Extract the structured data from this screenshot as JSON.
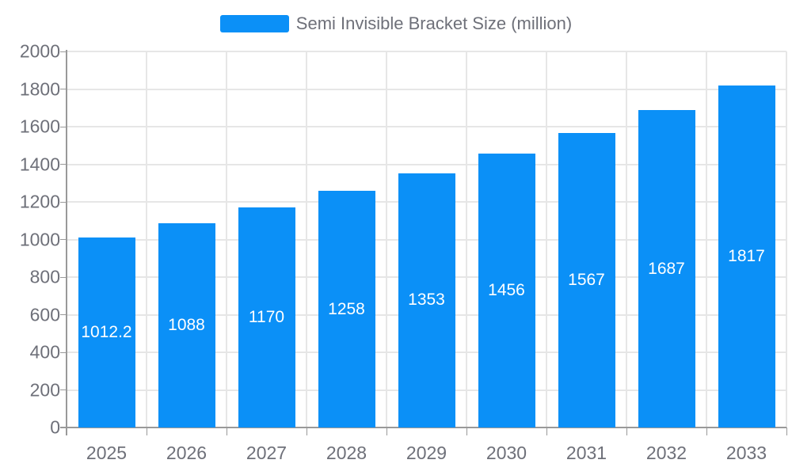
{
  "chart_data": {
    "type": "bar",
    "title": "",
    "legend": {
      "label": "Semi Invisible Bracket Size (million)",
      "position": "top-center"
    },
    "categories": [
      "2025",
      "2026",
      "2027",
      "2028",
      "2029",
      "2030",
      "2031",
      "2032",
      "2033"
    ],
    "series": [
      {
        "name": "Semi Invisible Bracket Size (million)",
        "values": [
          1012.2,
          1088,
          1170,
          1258,
          1353,
          1456,
          1567,
          1687,
          1817
        ]
      }
    ],
    "value_labels": [
      "1012.2",
      "1088",
      "1170",
      "1258",
      "1353",
      "1456",
      "1567",
      "1687",
      "1817"
    ],
    "value_label_position": "inside-center",
    "xlabel": "",
    "ylabel": "",
    "ylim": [
      0,
      2000
    ],
    "ytick_step": 200,
    "yticks": [
      "0",
      "200",
      "400",
      "600",
      "800",
      "1000",
      "1200",
      "1400",
      "1600",
      "1800",
      "2000"
    ],
    "grid": true,
    "colors": {
      "bar": "#0b90f7",
      "bar_value_text": "#ffffff",
      "axis_text": "#6e7079",
      "legend_text": "#6e7079",
      "gridline": "#e6e6e6",
      "axis_line": "#999999",
      "background": "#ffffff"
    }
  }
}
